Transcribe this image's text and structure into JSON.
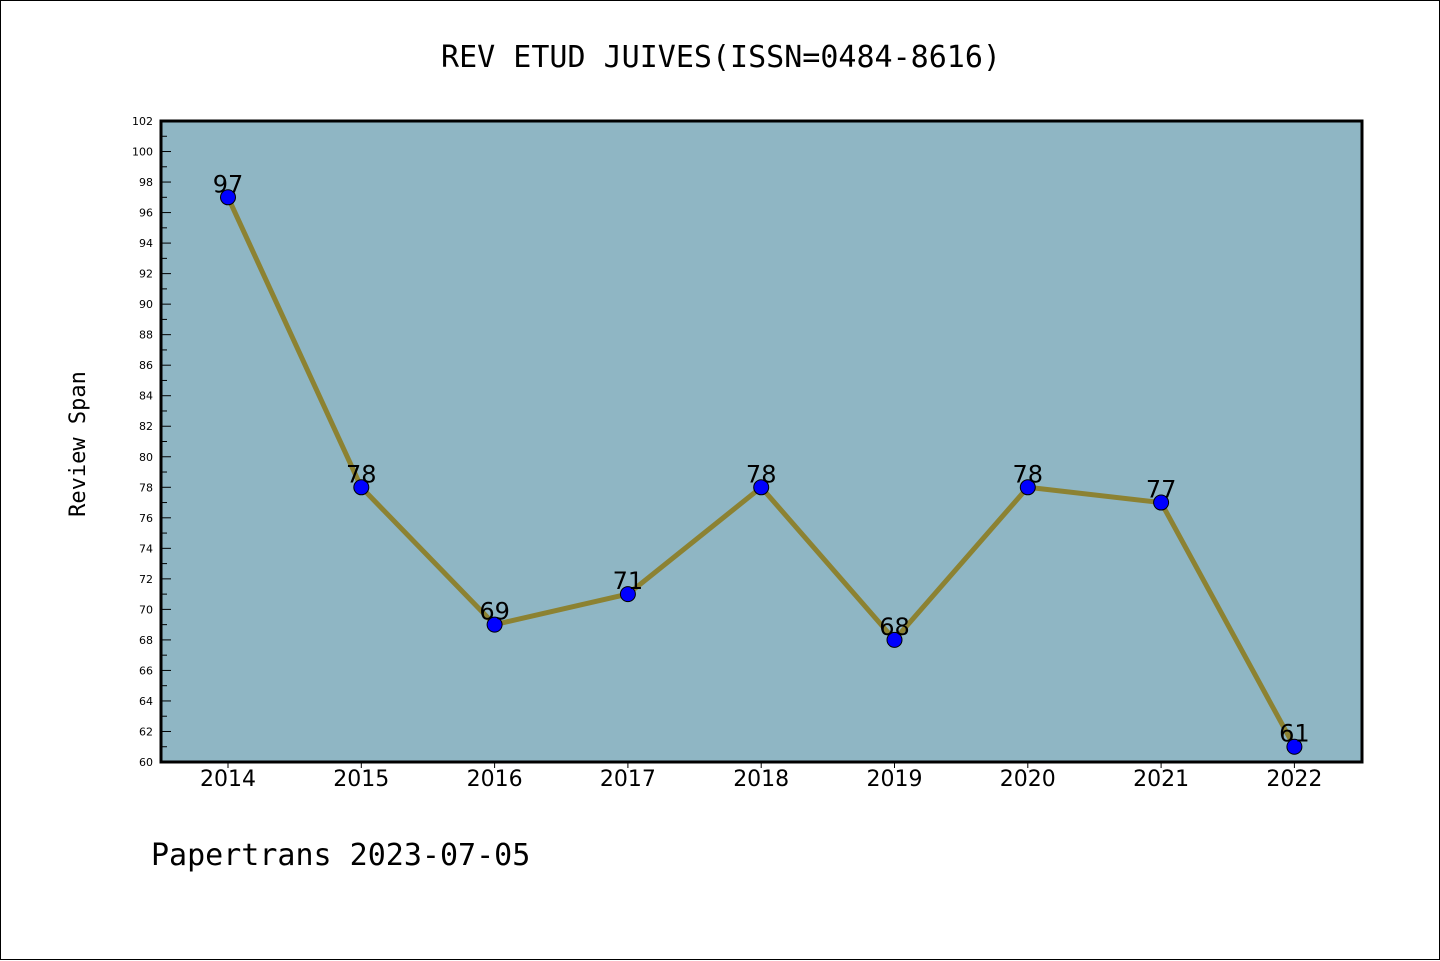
{
  "chart_data": {
    "type": "line",
    "title": "REV ETUD JUIVES(ISSN=0484-8616)",
    "ylabel": "Review Span",
    "xlabel": "",
    "categories": [
      "2014",
      "2015",
      "2016",
      "2017",
      "2018",
      "2019",
      "2020",
      "2021",
      "2022"
    ],
    "series": [
      {
        "values": [
          97,
          78,
          69,
          71,
          78,
          68,
          78,
          77,
          61
        ]
      }
    ],
    "ylim": [
      60,
      102
    ],
    "ytick_step": 2,
    "grid": false,
    "data_labels": true,
    "colors": {
      "plot_background": "#8fb6c4",
      "line": "#8c8232",
      "marker": "#0000ff"
    }
  },
  "footer": {
    "text": "Papertrans 2023-07-05"
  }
}
